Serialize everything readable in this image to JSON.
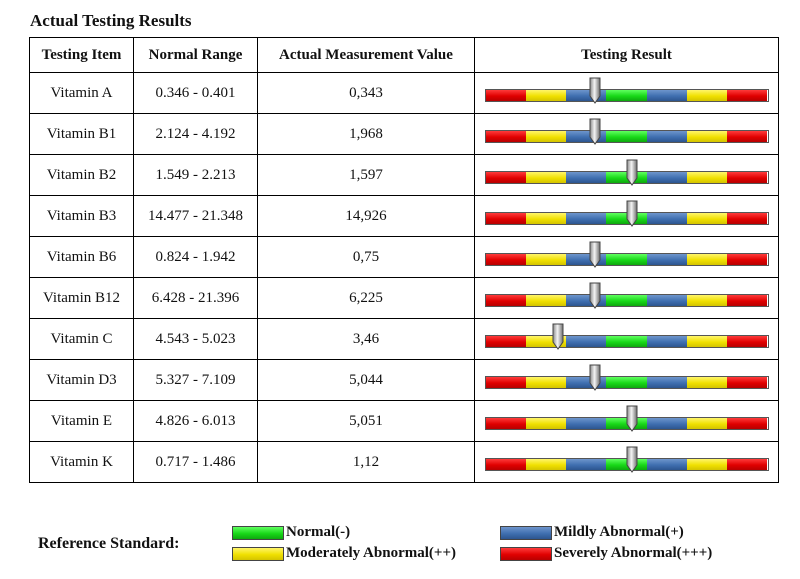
{
  "title": "Actual Testing Results",
  "headers": [
    "Testing Item",
    "Normal Range",
    "Actual Measurement Value",
    "Testing Result"
  ],
  "rows": [
    {
      "item": "Vitamin A",
      "range": "0.346 - 0.401",
      "value": "0,343",
      "level": 0.39
    },
    {
      "item": "Vitamin B1",
      "range": "2.124 - 4.192",
      "value": "1,968",
      "level": 0.39
    },
    {
      "item": "Vitamin B2",
      "range": "1.549 - 2.213",
      "value": "1,597",
      "level": 0.52
    },
    {
      "item": "Vitamin B3",
      "range": "14.477 - 21.348",
      "value": "14,926",
      "level": 0.52
    },
    {
      "item": "Vitamin B6",
      "range": "0.824 - 1.942",
      "value": "0,75",
      "level": 0.39
    },
    {
      "item": "Vitamin B12",
      "range": "6.428 - 21.396",
      "value": "6,225",
      "level": 0.39
    },
    {
      "item": "Vitamin C",
      "range": "4.543 - 5.023",
      "value": "3,46",
      "level": 0.26
    },
    {
      "item": "Vitamin D3",
      "range": "5.327 - 7.109",
      "value": "5,044",
      "level": 0.39
    },
    {
      "item": "Vitamin E",
      "range": "4.826 - 6.013",
      "value": "5,051",
      "level": 0.52
    },
    {
      "item": "Vitamin K",
      "range": "0.717 - 1.486",
      "value": "1,12",
      "level": 0.52
    }
  ],
  "scale_segments": [
    "red",
    "yellow",
    "blue",
    "green",
    "blue",
    "yellow",
    "red"
  ],
  "colors": {
    "normal": "#18d818",
    "mild": "#3f6fb0",
    "moderate": "#f0e000",
    "severe": "#e00000"
  },
  "legend": {
    "label": "Reference Standard:",
    "items": [
      {
        "key": "green",
        "text": "Normal(-)"
      },
      {
        "key": "blue",
        "text": "Mildly Abnormal(+)"
      },
      {
        "key": "yellow",
        "text": "Moderately Abnormal(++)"
      },
      {
        "key": "red",
        "text": "Severely Abnormal(+++)"
      }
    ]
  }
}
